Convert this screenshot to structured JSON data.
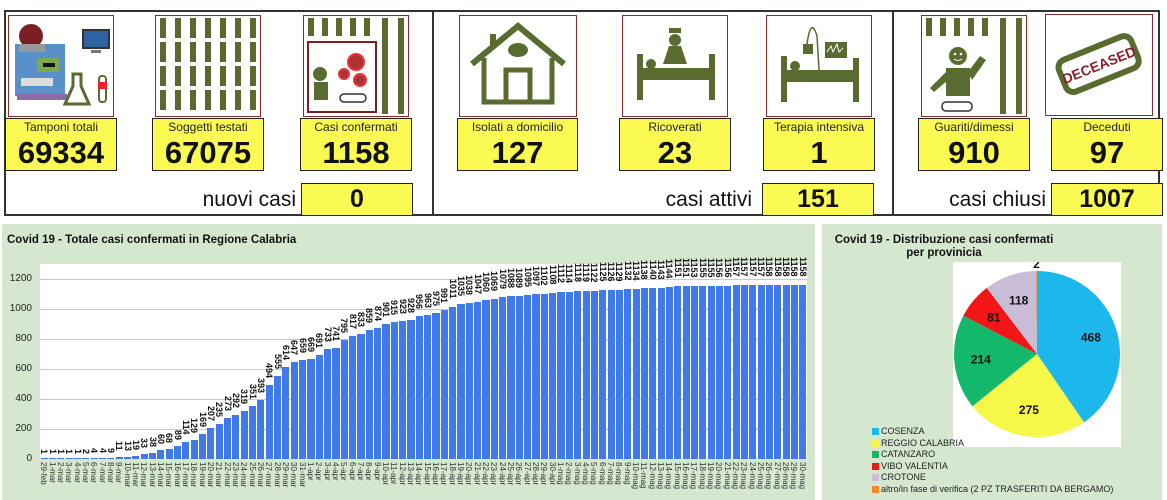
{
  "dashboard": {
    "sections": [
      {
        "cards": [
          {
            "label": "Tamponi totali",
            "value": "69334",
            "icon": "lab-equipment-icon"
          },
          {
            "label": "Soggetti testati",
            "value": "67075",
            "icon": "people-grid-icon"
          },
          {
            "label": "Casi confermati",
            "value": "1158",
            "icon": "infected-person-icon"
          }
        ],
        "summary_label": "nuovi casi",
        "summary_value": "0"
      },
      {
        "cards": [
          {
            "label": "Isolati a domicilio",
            "value": "127",
            "icon": "house-icon"
          },
          {
            "label": "Ricoverati",
            "value": "23",
            "icon": "hospital-bed-icon"
          },
          {
            "label": "Terapia intensiva",
            "value": "1",
            "icon": "intensive-care-icon"
          }
        ],
        "summary_label": "casi attivi",
        "summary_value": "151"
      },
      {
        "cards": [
          {
            "label": "Guariti/dimessi",
            "value": "910",
            "icon": "recovered-person-icon"
          },
          {
            "label": "Deceduti",
            "value": "97",
            "icon": "deceased-stamp-icon",
            "stamp_text": "DECEASED"
          }
        ],
        "summary_label": "casi chiusi",
        "summary_value": "1007"
      }
    ]
  },
  "colors": {
    "yellow": "#fbfa52",
    "panel_bg": "#d5e8cf",
    "bar": "#3f79ea",
    "icon_green": "#5a6b2f",
    "icon_border": "#8b2a2a"
  },
  "chart_data": [
    {
      "type": "bar",
      "title": "Covid 19 - Totale casi confermati in Regione Calabria",
      "xlabel": "",
      "ylabel": "",
      "ylim": [
        0,
        1300
      ],
      "yticks": [
        0,
        200,
        400,
        600,
        800,
        1000,
        1200
      ],
      "grid": true,
      "data_labels": true,
      "categories": [
        "29-feb",
        "1-mar",
        "2-mar",
        "3-mar",
        "4-mar",
        "5-mar",
        "6-mar",
        "7-mar",
        "8-mar",
        "9-mar",
        "10-mar",
        "11-mar",
        "12-mar",
        "13-mar",
        "14-mar",
        "15-mar",
        "16-mar",
        "17-mar",
        "18-mar",
        "19-mar",
        "20-mar",
        "21-mar",
        "22-mar",
        "23-mar",
        "24-mar",
        "25-mar",
        "26-mar",
        "27-mar",
        "28-mar",
        "29-mar",
        "30-mar",
        "31-mar",
        "1-apr",
        "2-apr",
        "3-apr",
        "4-apr",
        "5-apr",
        "6-apr",
        "7-apr",
        "8-apr",
        "9-apr",
        "10-apr",
        "11-apr",
        "12-apr",
        "13-apr",
        "14-apr",
        "15-apr",
        "16-apr",
        "17-apr",
        "18-apr",
        "19-apr",
        "20-apr",
        "21-apr",
        "22-apr",
        "23-apr",
        "24-apr",
        "25-apr",
        "26-apr",
        "27-apr",
        "28-apr",
        "29-apr",
        "30-apr",
        "1-mag",
        "2-mag",
        "3-mag",
        "4-mag",
        "5-mag",
        "6-mag",
        "7-mag",
        "8-mag",
        "9-mag",
        "10-mag",
        "11-mag",
        "12-mag",
        "13-mag",
        "14-mag",
        "15-mag",
        "16-mag",
        "17-mag",
        "18-mag",
        "19-mag",
        "20-mag",
        "21-mag",
        "22-mag",
        "23-mag",
        "24-mag",
        "25-mag",
        "26-mag",
        "27-mag",
        "28-mag",
        "29-mag",
        "30-mag"
      ],
      "values": [
        1,
        1,
        1,
        1,
        1,
        2,
        4,
        4,
        9,
        11,
        13,
        19,
        33,
        38,
        60,
        68,
        89,
        114,
        129,
        169,
        207,
        235,
        273,
        292,
        319,
        351,
        393,
        494,
        555,
        614,
        647,
        659,
        669,
        691,
        733,
        741,
        795,
        817,
        833,
        859,
        874,
        901,
        915,
        923,
        928,
        956,
        963,
        975,
        991,
        1011,
        1035,
        1038,
        1047,
        1060,
        1069,
        1079,
        1088,
        1089,
        1095,
        1097,
        1102,
        1108,
        1112,
        1114,
        1118,
        1119,
        1122,
        1125,
        1126,
        1129,
        1132,
        1134,
        1138,
        1140,
        1143,
        1144,
        1151,
        1151,
        1153,
        1155,
        1155,
        1156,
        1156,
        1157,
        1157,
        1157,
        1157,
        1158,
        1158,
        1158,
        1158,
        1158
      ]
    },
    {
      "type": "pie",
      "title": "Covid 19 - Distribuzione casi confermati per provinicia",
      "legend_position": "bottom-left",
      "slices": [
        {
          "label": "COSENZA",
          "value": 468,
          "color": "#1cb8ec"
        },
        {
          "label": "REGGIO CALABRIA",
          "value": 275,
          "color": "#f7f74a"
        },
        {
          "label": "CATANZARO",
          "value": 214,
          "color": "#13b86a"
        },
        {
          "label": "VIBO VALENTIA",
          "value": 81,
          "color": "#f31616"
        },
        {
          "label": "CROTONE",
          "value": 118,
          "color": "#c8bcd6"
        },
        {
          "label": "altro/in fase di verifica (2 PZ TRASFERITI DA BERGAMO)",
          "value": 2,
          "color": "#ef8a2e"
        }
      ]
    }
  ]
}
